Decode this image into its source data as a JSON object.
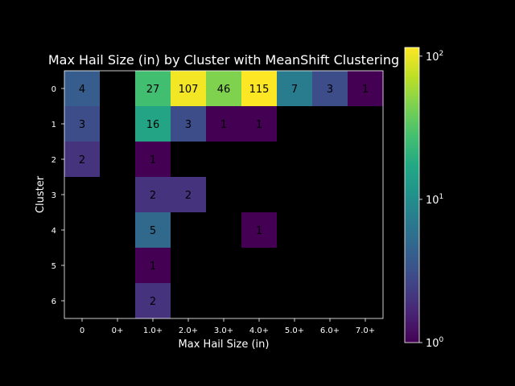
{
  "chart_data": {
    "type": "heatmap",
    "title": "Max Hail Size (in) by Cluster with MeanShift Clustering",
    "xlabel": "Max Hail Size (in)",
    "ylabel": "Cluster",
    "x_categories": [
      "0",
      "0+",
      "1.0+",
      "2.0+",
      "3.0+",
      "4.0+",
      "5.0+",
      "6.0+",
      "7.0+"
    ],
    "y_categories": [
      "0",
      "1",
      "2",
      "3",
      "4",
      "5",
      "6"
    ],
    "values": [
      [
        4,
        0,
        27,
        107,
        46,
        115,
        7,
        3,
        1
      ],
      [
        3,
        0,
        16,
        3,
        1,
        1,
        0,
        0,
        0
      ],
      [
        2,
        0,
        1,
        0,
        0,
        0,
        0,
        0,
        0
      ],
      [
        0,
        0,
        2,
        2,
        0,
        0,
        0,
        0,
        0
      ],
      [
        0,
        0,
        5,
        0,
        0,
        1,
        0,
        0,
        0
      ],
      [
        0,
        0,
        1,
        0,
        0,
        0,
        0,
        0,
        0
      ],
      [
        0,
        0,
        2,
        0,
        0,
        0,
        0,
        0,
        0
      ]
    ],
    "empty_cells": "blank (zero)",
    "colormap": "viridis",
    "color_scale": "log",
    "colorbar_range": [
      1,
      115
    ],
    "colorbar_ticks": [
      {
        "value": 1,
        "base": "10",
        "exp": "0"
      },
      {
        "value": 10,
        "base": "10",
        "exp": "1"
      },
      {
        "value": 100,
        "base": "10",
        "exp": "2"
      }
    ],
    "background": "#000000",
    "grid": false
  }
}
